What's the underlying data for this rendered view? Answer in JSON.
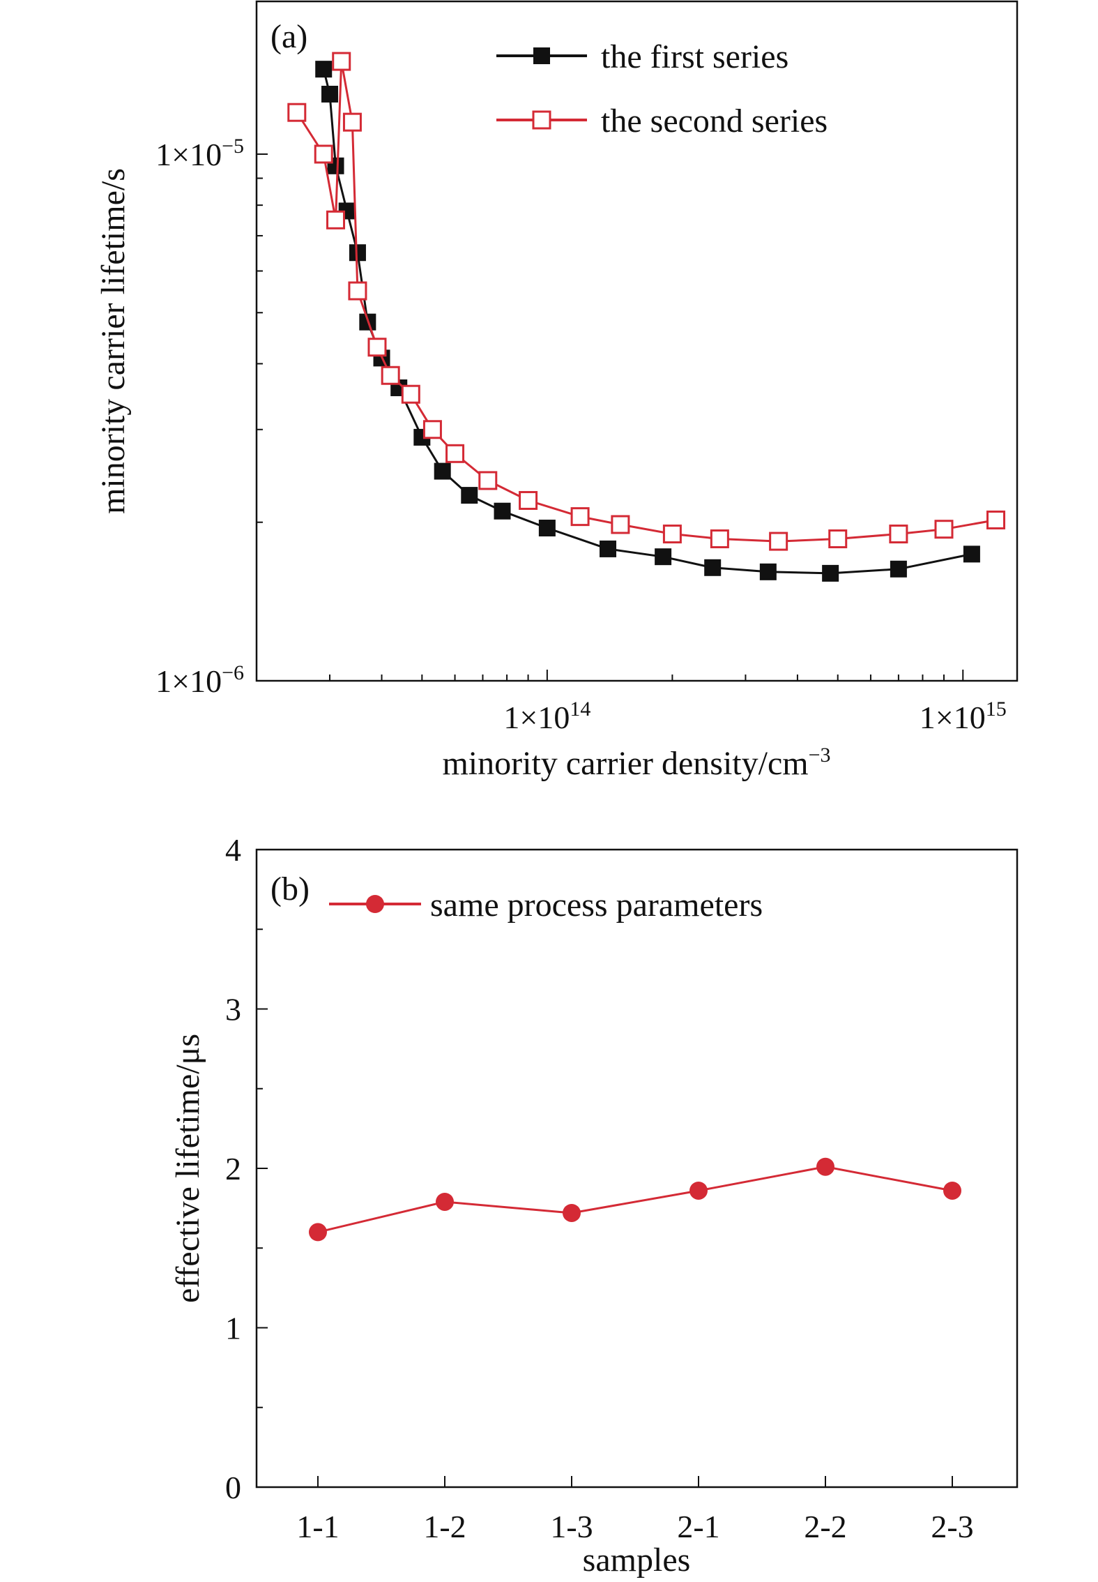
{
  "colors": {
    "series_black": "#111111",
    "series_red": "#d42a35",
    "background": "#ffffff"
  },
  "chart_data": [
    {
      "panel_label": "(a)",
      "type": "scatter",
      "xscale": "log",
      "yscale": "log",
      "xlabel": "minority carrier density/cm",
      "xlabel_sup": "−3",
      "ylabel": "minority carrier lifetime/s",
      "xlim": [
        20000000000000.0,
        1350000000000000.0
      ],
      "ylim": [
        1e-06,
        1.95e-05
      ],
      "x_ticks": [
        {
          "value": 100000000000000.0,
          "base": "1×10",
          "exp": "14"
        },
        {
          "value": 1000000000000000.0,
          "base": "1×10",
          "exp": "15"
        }
      ],
      "y_ticks": [
        {
          "value": 1e-06,
          "base": "1×10",
          "exp": "−6"
        },
        {
          "value": 1e-05,
          "base": "1×10",
          "exp": "−5"
        }
      ],
      "legend_position": "top-right",
      "series": [
        {
          "name": "the first series",
          "marker": "filled-square",
          "color": "#111111",
          "x": [
            29000000000000.0,
            30000000000000.0,
            31000000000000.0,
            33000000000000.0,
            35000000000000.0,
            37000000000000.0,
            40000000000000.0,
            44000000000000.0,
            50000000000000.0,
            56000000000000.0,
            65000000000000.0,
            78000000000000.0,
            100000000000000.0,
            140000000000000.0,
            190000000000000.0,
            250000000000000.0,
            340000000000000.0,
            480000000000000.0,
            700000000000000.0,
            1050000000000000.0
          ],
          "y": [
            1.45e-05,
            1.3e-05,
            9.5e-06,
            7.8e-06,
            6.5e-06,
            4.8e-06,
            4.1e-06,
            3.6e-06,
            2.9e-06,
            2.5e-06,
            2.25e-06,
            2.1e-06,
            1.95e-06,
            1.78e-06,
            1.72e-06,
            1.64e-06,
            1.61e-06,
            1.6e-06,
            1.63e-06,
            1.74e-06
          ]
        },
        {
          "name": "the second series",
          "marker": "open-square",
          "color": "#d42a35",
          "x": [
            25000000000000.0,
            29000000000000.0,
            31000000000000.0,
            32000000000000.0,
            34000000000000.0,
            35000000000000.0,
            39000000000000.0,
            42000000000000.0,
            47000000000000.0,
            53000000000000.0,
            60000000000000.0,
            72000000000000.0,
            90000000000000.0,
            120000000000000.0,
            150000000000000.0,
            200000000000000.0,
            260000000000000.0,
            360000000000000.0,
            500000000000000.0,
            700000000000000.0,
            900000000000000.0,
            1200000000000000.0
          ],
          "y": [
            1.2e-05,
            1e-05,
            7.5e-06,
            1.5e-05,
            1.15e-05,
            5.5e-06,
            4.3e-06,
            3.8e-06,
            3.5e-06,
            3e-06,
            2.7e-06,
            2.4e-06,
            2.2e-06,
            2.05e-06,
            1.98e-06,
            1.9e-06,
            1.86e-06,
            1.84e-06,
            1.86e-06,
            1.9e-06,
            1.94e-06,
            2.02e-06
          ]
        }
      ]
    },
    {
      "panel_label": "(b)",
      "type": "line",
      "xlabel": "samples",
      "ylabel": "effective lifetime/μs",
      "ylim": [
        0,
        4
      ],
      "y_ticks": [
        "0",
        "1",
        "2",
        "3",
        "4"
      ],
      "categories": [
        "1-1",
        "1-2",
        "1-3",
        "2-1",
        "2-2",
        "2-3"
      ],
      "legend_position": "top-left",
      "series": [
        {
          "name": "same process parameters",
          "marker": "filled-circle",
          "color": "#d42a35",
          "values": [
            1.6,
            1.79,
            1.72,
            1.86,
            2.01,
            1.86
          ]
        }
      ]
    }
  ]
}
